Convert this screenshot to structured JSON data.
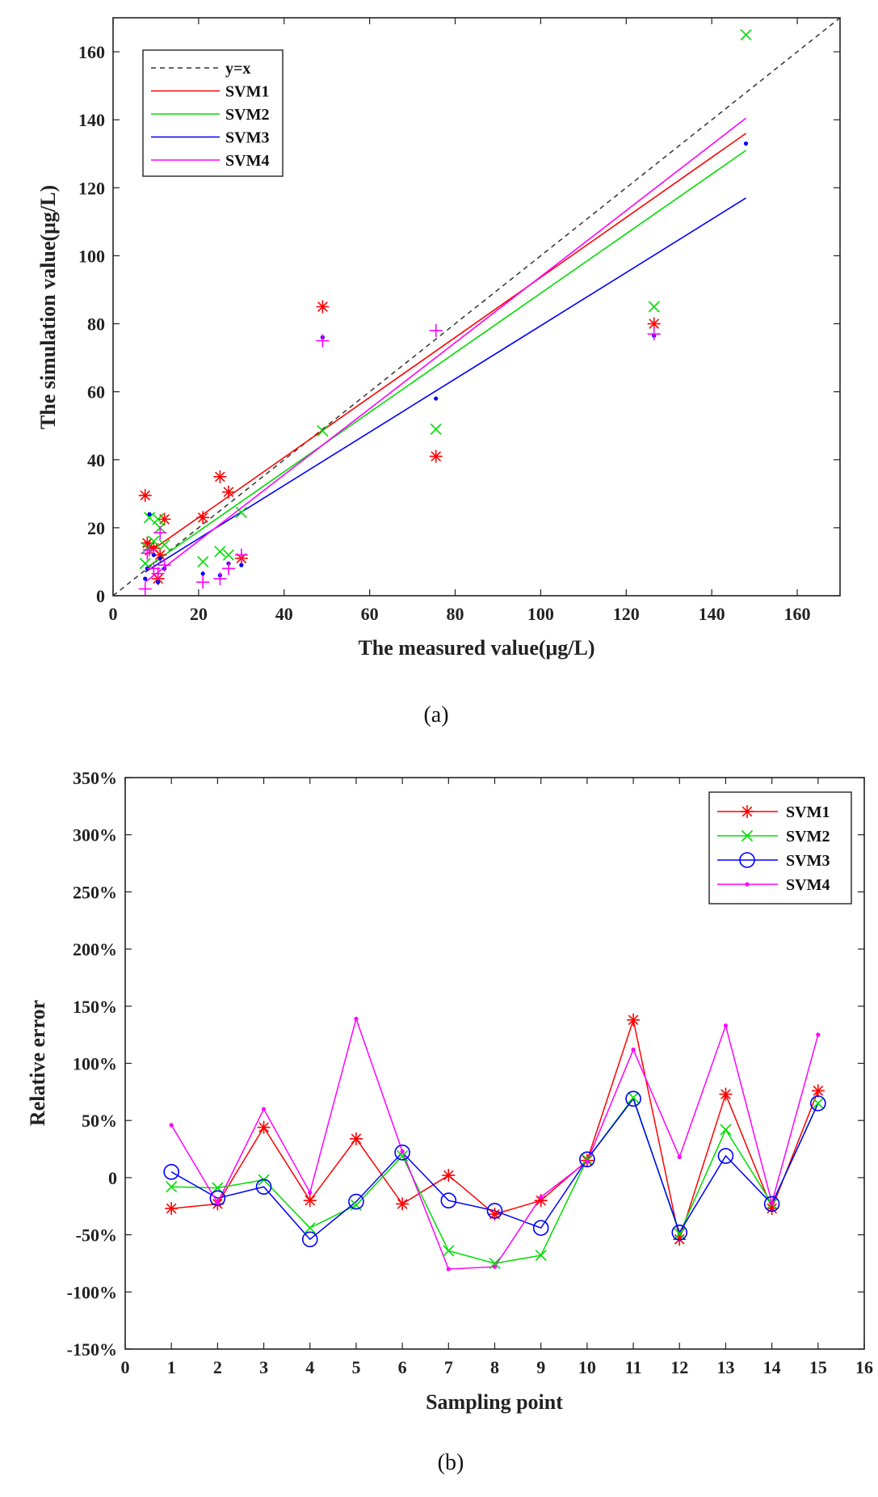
{
  "chart_data": [
    {
      "panel": "a",
      "caption": "(a)",
      "type": "scatter",
      "xlabel": "The measured value(μg/L)",
      "ylabel": "The simulation value(μg/L)",
      "xlim": [
        0,
        170
      ],
      "ylim": [
        0,
        170
      ],
      "xticks": [
        0,
        20,
        40,
        60,
        80,
        100,
        120,
        140,
        160
      ],
      "yticks": [
        0,
        20,
        40,
        60,
        80,
        100,
        120,
        140,
        160
      ],
      "legend": {
        "position": "top-left",
        "entries": [
          "y=x",
          "SVM1",
          "SVM2",
          "SVM3",
          "SVM4"
        ]
      },
      "colors": {
        "yx": "#333333",
        "SVM1": "#ff0000",
        "SVM2": "#00dd00",
        "SVM3": "#0000ff",
        "SVM4": "#ff00ff"
      },
      "reference_line": {
        "name": "y=x",
        "x": [
          0,
          170
        ],
        "y": [
          0,
          170
        ]
      },
      "measured": [
        7.5,
        8.5,
        9.5,
        10.5,
        12,
        21,
        25,
        27,
        30,
        49,
        75.5,
        126.5,
        148,
        8,
        11
      ],
      "series": [
        {
          "name": "SVM1",
          "marker": "asterisk",
          "x": [
            7.5,
            8.5,
            9.5,
            10.5,
            12,
            21,
            25,
            27,
            30,
            49,
            75.5,
            126.5,
            8,
            11
          ],
          "y": [
            29.5,
            14.5,
            14,
            5,
            22.5,
            23,
            35,
            30.5,
            11,
            85,
            41,
            80,
            15.5,
            12
          ],
          "fit": {
            "x": [
              7.5,
              148
            ],
            "y": [
              12,
              136
            ]
          }
        },
        {
          "name": "SVM2",
          "marker": "x",
          "x": [
            7.5,
            8.5,
            9.5,
            10.5,
            12,
            21,
            25,
            27,
            30,
            49,
            75.5,
            126.5,
            148,
            8,
            11
          ],
          "y": [
            9.5,
            23,
            16,
            22.5,
            15,
            10,
            13,
            12,
            24.5,
            48.5,
            49,
            85,
            165,
            14,
            20
          ],
          "fit": {
            "x": [
              7.5,
              148
            ],
            "y": [
              8,
              131
            ]
          }
        },
        {
          "name": "SVM3",
          "marker": "dot",
          "x": [
            7.5,
            8.5,
            9.5,
            10.5,
            12,
            21,
            25,
            27,
            30,
            49,
            75.5,
            126.5,
            148,
            8,
            11
          ],
          "y": [
            5,
            24,
            12,
            4,
            8,
            6.5,
            6,
            9.5,
            9,
            76,
            58,
            76.5,
            133,
            8,
            11
          ],
          "fit": {
            "x": [
              7.5,
              148
            ],
            "y": [
              7,
              117
            ]
          }
        },
        {
          "name": "SVM4",
          "marker": "plus",
          "x": [
            7.5,
            8.5,
            9.5,
            10.5,
            12,
            21,
            25,
            27,
            30,
            49,
            75.5,
            126.5,
            8,
            11
          ],
          "y": [
            2,
            13.5,
            8,
            6.5,
            9,
            4,
            5,
            8,
            12,
            75,
            78,
            77,
            12.5,
            18.5
          ],
          "fit": {
            "x": [
              7.5,
              148
            ],
            "y": [
              4,
              140.5
            ]
          }
        }
      ]
    },
    {
      "panel": "b",
      "caption": "(b)",
      "type": "line",
      "xlabel": "Sampling point",
      "ylabel": "Relative error",
      "xlim": [
        0,
        16
      ],
      "ylim": [
        -150,
        350
      ],
      "xticks": [
        0,
        1,
        2,
        3,
        4,
        5,
        6,
        7,
        8,
        9,
        10,
        11,
        12,
        13,
        14,
        15,
        16
      ],
      "ytick_labels": [
        "-150%",
        "-100%",
        "-50%",
        "0",
        "50%",
        "100%",
        "150%",
        "200%",
        "250%",
        "300%",
        "350%"
      ],
      "yticks": [
        -150,
        -100,
        -50,
        0,
        50,
        100,
        150,
        200,
        250,
        300,
        350
      ],
      "legend": {
        "position": "top-right",
        "entries": [
          "SVM1",
          "SVM2",
          "SVM3",
          "SVM4"
        ]
      },
      "x": [
        1,
        2,
        3,
        4,
        5,
        6,
        7,
        8,
        9,
        10,
        11,
        12,
        13,
        14,
        15
      ],
      "series": [
        {
          "name": "SVM1",
          "marker": "asterisk",
          "color": "#ff0000",
          "values": [
            -27,
            -23,
            44,
            -20,
            34,
            -23,
            2,
            -32,
            -20,
            15,
            138,
            -54,
            73,
            -27,
            76
          ]
        },
        {
          "name": "SVM2",
          "marker": "x",
          "color": "#00dd00",
          "values": [
            -8,
            -9,
            -2,
            -44,
            -24,
            19,
            -64,
            -75,
            -68,
            16,
            70,
            -49,
            42,
            -23,
            65
          ]
        },
        {
          "name": "SVM3",
          "marker": "circle",
          "color": "#0000ff",
          "values": [
            5,
            -18,
            -8,
            -54,
            -21,
            22,
            -20,
            -29,
            -44,
            16,
            69,
            -48,
            19,
            -23,
            65
          ]
        },
        {
          "name": "SVM4",
          "marker": "dot",
          "color": "#ff00ff",
          "values": [
            46,
            -22,
            60,
            -13,
            139,
            23,
            -80,
            -78,
            -17,
            14,
            112,
            18,
            133,
            -22,
            125
          ]
        }
      ]
    }
  ]
}
